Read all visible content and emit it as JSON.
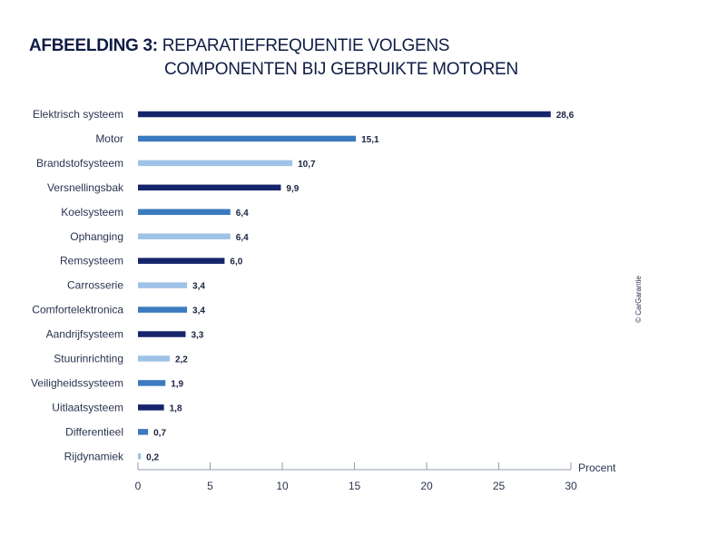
{
  "title": {
    "prefix": "AFBEELDING 3:",
    "line1": "REPARATIEFREQUENTIE VOLGENS",
    "line2": "COMPONENTEN BIJ GEBRUIKTE MOTOREN"
  },
  "credit": "© CarGarantie",
  "colors": {
    "dark": "#15246b",
    "medium": "#3b7ac0",
    "light": "#9fc3e6",
    "axis": "#8f9bb0"
  },
  "chart_data": {
    "type": "bar",
    "orientation": "horizontal",
    "title": "AFBEELDING 3: REPARATIEFREQUENTIE VOLGENS COMPONENTEN BIJ GEBRUIKTE MOTOREN",
    "xlabel": "Procent",
    "ylabel": "",
    "xlim": [
      0,
      30
    ],
    "xticks": [
      0,
      5,
      10,
      15,
      20,
      25,
      30
    ],
    "grid": false,
    "categories": [
      "Elektrisch systeem",
      "Motor",
      "Brandstofsysteem",
      "Versnellingsbak",
      "Koelsysteem",
      "Ophanging",
      "Remsysteem",
      "Carrosserie",
      "Comfortelektronica",
      "Aandrijfsysteem",
      "Stuurinrichting",
      "Veiligheidssysteem",
      "Uitlaatsysteem",
      "Differentieel",
      "Rijdynamiek"
    ],
    "values": [
      28.6,
      15.1,
      10.7,
      9.9,
      6.4,
      6.4,
      6.0,
      3.4,
      3.4,
      3.3,
      2.2,
      1.9,
      1.8,
      0.7,
      0.2
    ],
    "value_labels": [
      "28,6",
      "15,1",
      "10,7",
      "9,9",
      "6,4",
      "6,4",
      "6,0",
      "3,4",
      "3,4",
      "3,3",
      "2,2",
      "1,9",
      "1,8",
      "0,7",
      "0,2"
    ],
    "bar_colors": [
      "dark",
      "medium",
      "light",
      "dark",
      "medium",
      "light",
      "dark",
      "light",
      "medium",
      "dark",
      "light",
      "medium",
      "dark",
      "medium",
      "light"
    ]
  }
}
